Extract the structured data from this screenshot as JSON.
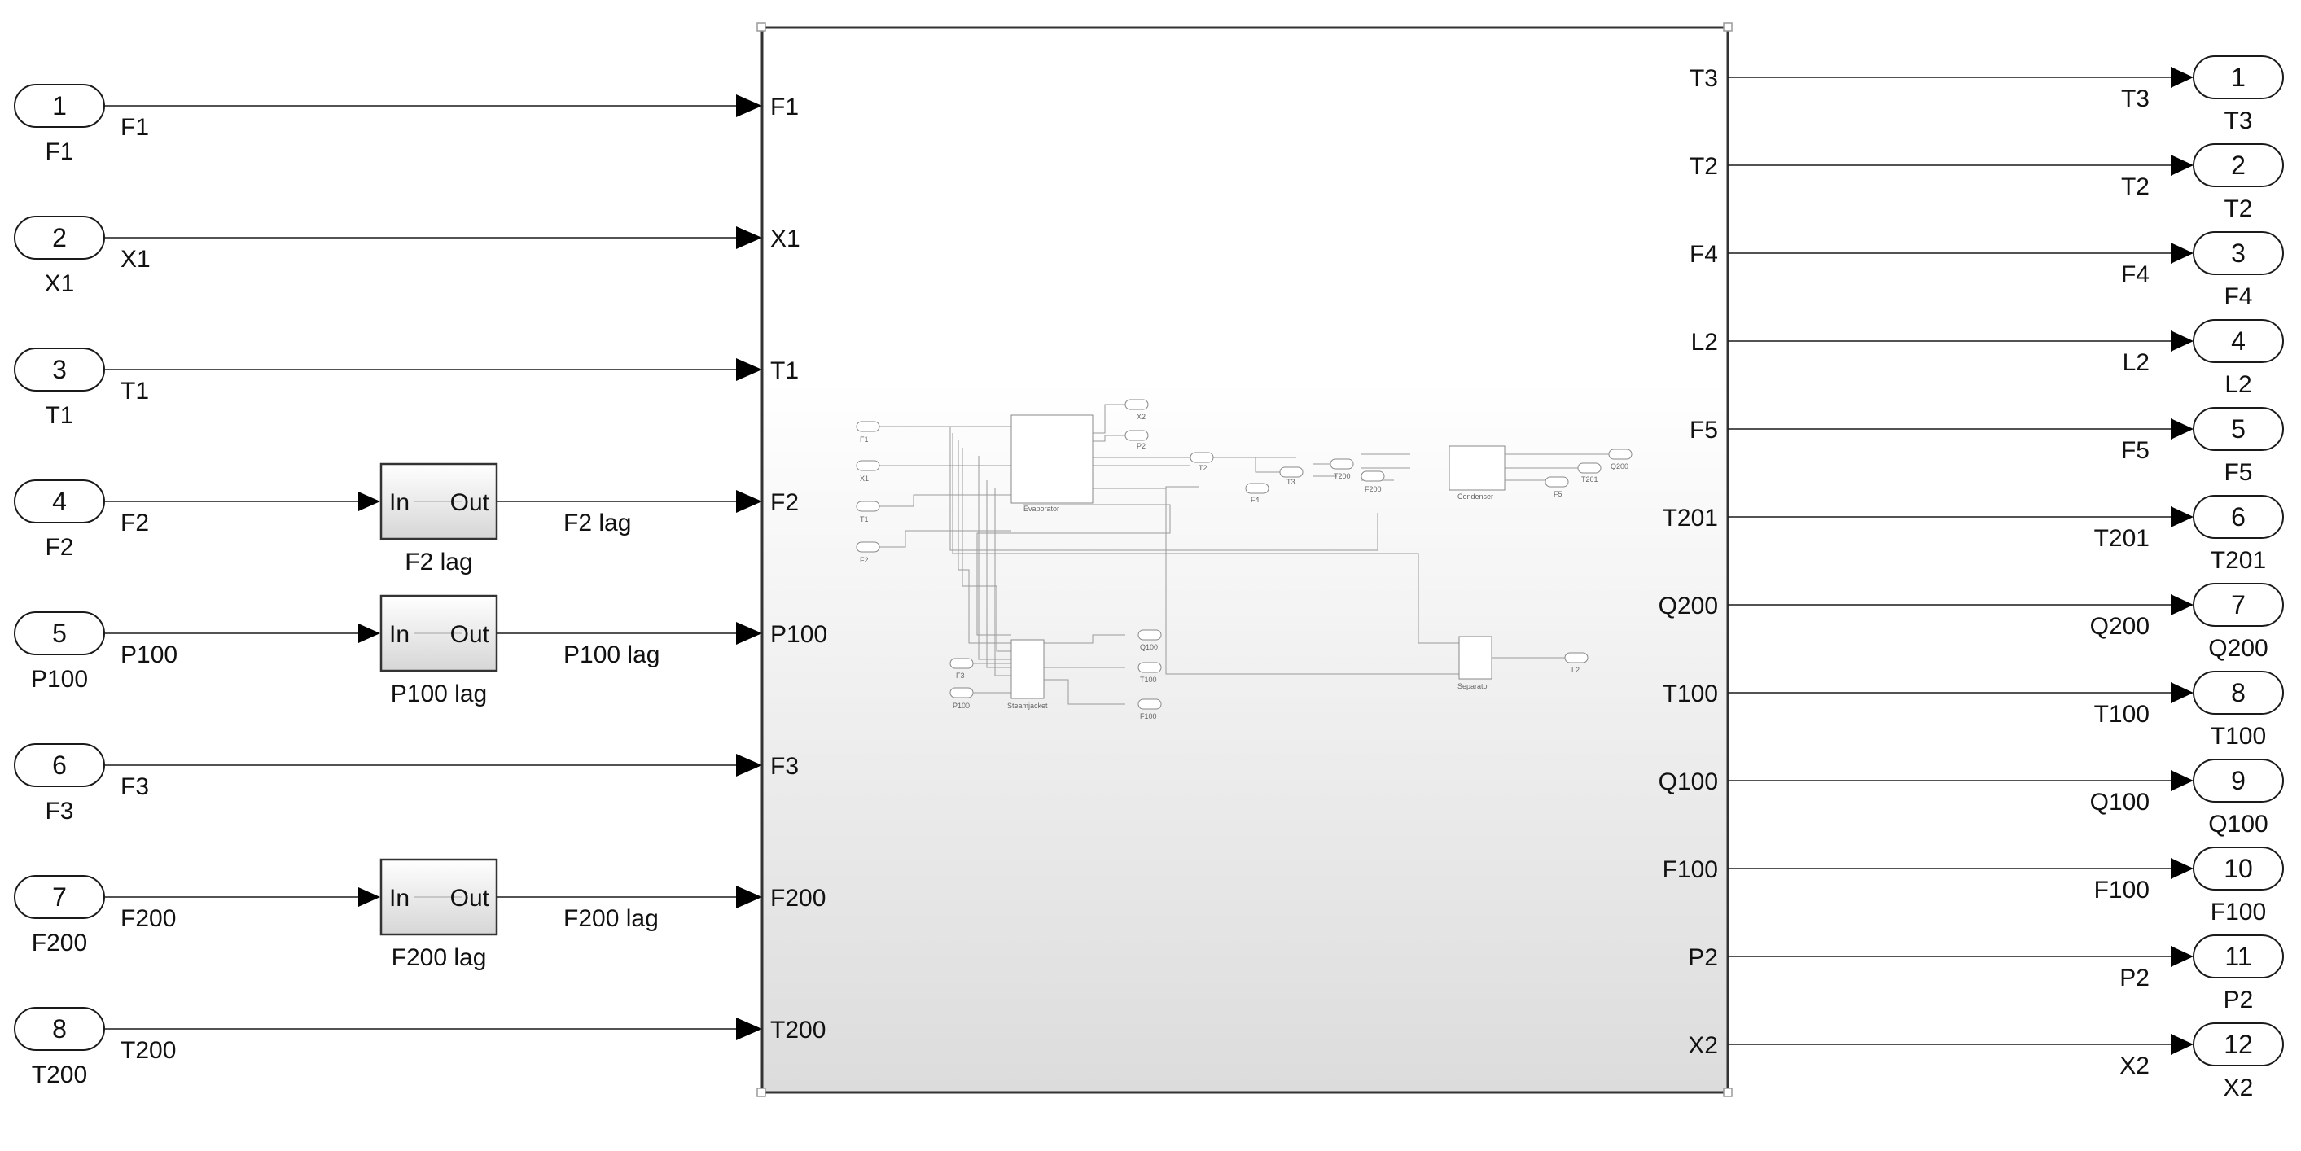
{
  "inports": [
    {
      "num": "1",
      "name": "F1",
      "signal": "F1",
      "lag": null,
      "target": "F1"
    },
    {
      "num": "2",
      "name": "X1",
      "signal": "X1",
      "lag": null,
      "target": "X1"
    },
    {
      "num": "3",
      "name": "T1",
      "signal": "T1",
      "lag": null,
      "target": "T1"
    },
    {
      "num": "4",
      "name": "F2",
      "signal": "F2",
      "lag": {
        "in": "In",
        "out": "Out",
        "name": "F2 lag",
        "out_signal": "F2 lag"
      },
      "target": "F2"
    },
    {
      "num": "5",
      "name": "P100",
      "signal": "P100",
      "lag": {
        "in": "In",
        "out": "Out",
        "name": "P100 lag",
        "out_signal": "P100 lag"
      },
      "target": "P100"
    },
    {
      "num": "6",
      "name": "F3",
      "signal": "F3",
      "lag": null,
      "target": "F3"
    },
    {
      "num": "7",
      "name": "F200",
      "signal": "F200",
      "lag": {
        "in": "In",
        "out": "Out",
        "name": "F200 lag",
        "out_signal": "F200 lag"
      },
      "target": "F200"
    },
    {
      "num": "8",
      "name": "T200",
      "signal": "T200",
      "lag": null,
      "target": "T200"
    }
  ],
  "outports": [
    {
      "num": "1",
      "source": "T3",
      "signal": "T3",
      "name": "T3"
    },
    {
      "num": "2",
      "source": "T2",
      "signal": "T2",
      "name": "T2"
    },
    {
      "num": "3",
      "source": "F4",
      "signal": "F4",
      "name": "F4"
    },
    {
      "num": "4",
      "source": "L2",
      "signal": "L2",
      "name": "L2"
    },
    {
      "num": "5",
      "source": "F5",
      "signal": "F5",
      "name": "F5"
    },
    {
      "num": "6",
      "source": "T201",
      "signal": "T201",
      "name": "T201"
    },
    {
      "num": "7",
      "source": "Q200",
      "signal": "Q200",
      "name": "Q200"
    },
    {
      "num": "8",
      "source": "T100",
      "signal": "T100",
      "name": "T100"
    },
    {
      "num": "9",
      "source": "Q100",
      "signal": "Q100",
      "name": "Q100"
    },
    {
      "num": "10",
      "source": "F100",
      "signal": "F100",
      "name": "F100"
    },
    {
      "num": "11",
      "source": "P2",
      "signal": "P2",
      "name": "P2"
    },
    {
      "num": "12",
      "source": "X2",
      "signal": "X2",
      "name": "X2"
    }
  ],
  "preview": {
    "inports": [
      "F1",
      "X1",
      "T1",
      "F2"
    ],
    "evaporator": "Evaporator",
    "evap_outputs": [
      "X2",
      "P2",
      "T2",
      "F4",
      "T3"
    ],
    "condenser_inports": [
      "T200",
      "F200"
    ],
    "condenser": "Condenser",
    "condenser_outputs": [
      "Q200",
      "T201",
      "F5"
    ],
    "steam_inports": [
      "F3",
      "P100"
    ],
    "steamjacket": "Steamjacket",
    "steam_outputs": [
      "Q100",
      "T100",
      "F100"
    ],
    "separator": "Separator",
    "separator_output": "L2"
  }
}
